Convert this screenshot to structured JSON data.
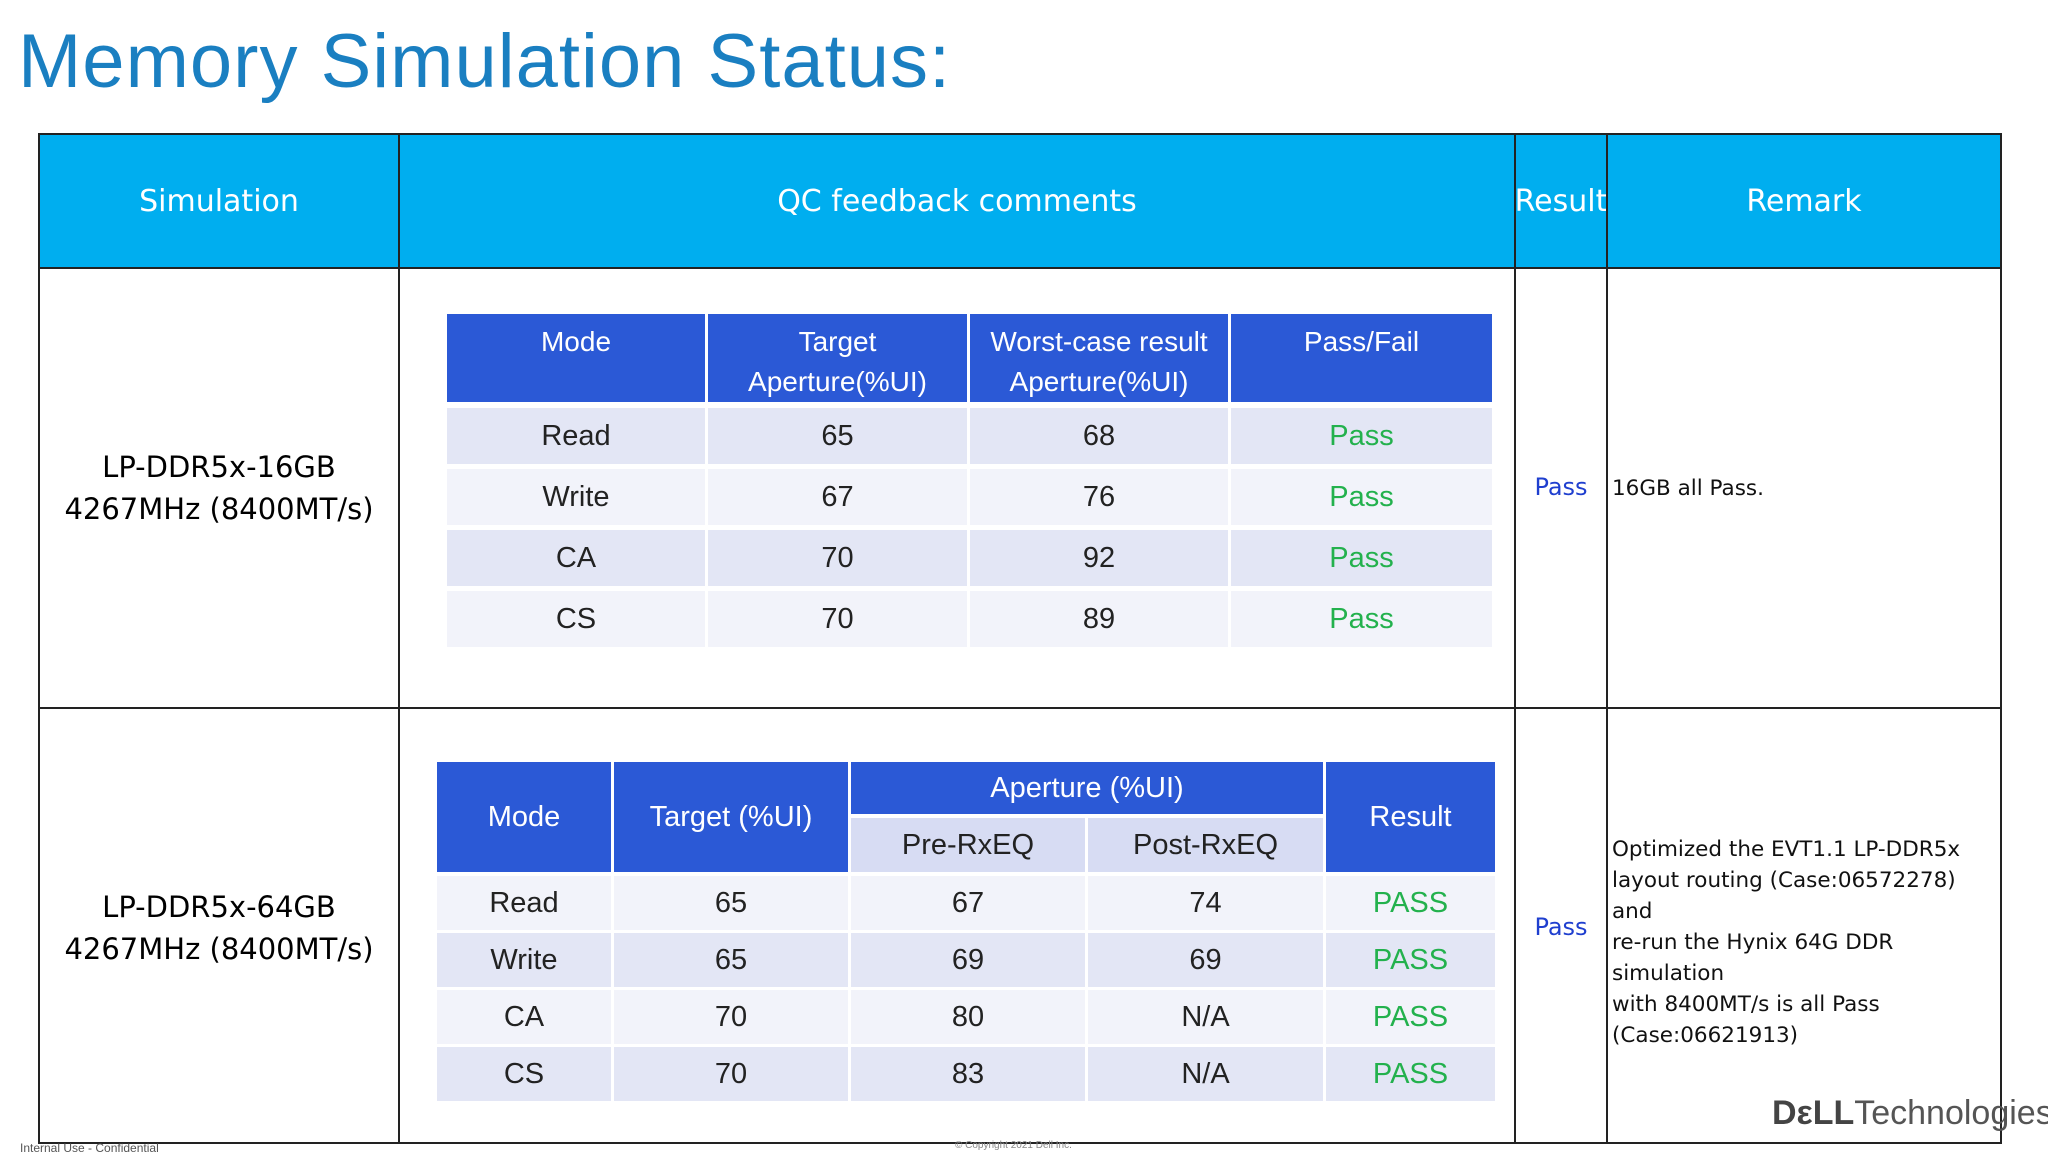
{
  "title": "Memory Simulation Status:",
  "colors": {
    "title": "#1a7fc1",
    "header_band": "#00aeef",
    "inner_header": "#2b59d6",
    "pass_green": "#23b14d",
    "pass_blue": "#1f3fcf"
  },
  "header": {
    "simulation": "Simulation",
    "qc_feedback": "QC feedback  comments",
    "result": "Result",
    "remark": "Remark"
  },
  "row1": {
    "simulation_line1": "LP-DDR5x-16GB",
    "simulation_line2": "4267MHz (8400MT/s)",
    "result": "Pass",
    "remark": "16GB all Pass.",
    "table": {
      "headers": [
        "Mode",
        "Target Aperture(%UI)",
        "Worst-case result Aperture(%UI)",
        "Pass/Fail"
      ],
      "rows": [
        [
          "Read",
          "65",
          "68",
          "Pass"
        ],
        [
          "Write",
          "67",
          "76",
          "Pass"
        ],
        [
          "CA",
          "70",
          "92",
          "Pass"
        ],
        [
          "CS",
          "70",
          "89",
          "Pass"
        ]
      ]
    }
  },
  "row2": {
    "simulation_line1": "LP-DDR5x-64GB",
    "simulation_line2": "4267MHz (8400MT/s)",
    "result": "Pass",
    "remark_lines": [
      "Optimized the EVT1.1 LP-DDR5x",
      "layout routing (Case:06572278) and",
      "re-run the Hynix 64G DDR simulation",
      "with 8400MT/s is all Pass",
      "(Case:06621913)"
    ],
    "table": {
      "mode_header": "Mode",
      "target_header": "Target (%UI)",
      "aperture_header": "Aperture (%UI)",
      "pre_header": "Pre-RxEQ",
      "post_header": "Post-RxEQ",
      "result_header": "Result",
      "rows": [
        [
          "Read",
          "65",
          "67",
          "74",
          "PASS"
        ],
        [
          "Write",
          "65",
          "69",
          "69",
          "PASS"
        ],
        [
          "CA",
          "70",
          "80",
          "N/A",
          "PASS"
        ],
        [
          "CS",
          "70",
          "83",
          "N/A",
          "PASS"
        ]
      ]
    }
  },
  "footer": {
    "left": "Internal Use - Confidential",
    "copyright": "© Copyright 2021 Dell Inc.",
    "logo_bold": "DεLL",
    "logo_rest": "Technologies"
  }
}
